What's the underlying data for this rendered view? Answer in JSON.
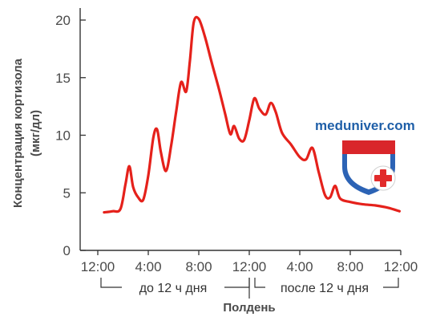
{
  "chart_data": {
    "type": "line",
    "ylabel_line1": "Концентрация кортизола",
    "ylabel_line2": "(мкг/дл)",
    "xlabel": "Полдень",
    "ylim": [
      0,
      21
    ],
    "yticks": [
      0,
      5,
      10,
      15,
      20
    ],
    "xticks": [
      "12:00",
      "4:00",
      "8:00",
      "12:00",
      "4:00",
      "8:00",
      "12:00"
    ],
    "xlim_hours": [
      0,
      24
    ],
    "bracket_left": "до 12 ч дня",
    "bracket_right": "после 12 ч дня",
    "series": [
      {
        "color": "#e5211b",
        "points": [
          [
            0.5,
            3.3
          ],
          [
            1.2,
            3.4
          ],
          [
            1.8,
            3.6
          ],
          [
            2.2,
            5.8
          ],
          [
            2.5,
            7.3
          ],
          [
            2.8,
            5.5
          ],
          [
            3.2,
            4.6
          ],
          [
            3.6,
            4.4
          ],
          [
            4.0,
            6.5
          ],
          [
            4.4,
            9.8
          ],
          [
            4.7,
            10.5
          ],
          [
            5.0,
            8.5
          ],
          [
            5.4,
            6.9
          ],
          [
            5.8,
            9.0
          ],
          [
            6.2,
            12.0
          ],
          [
            6.6,
            14.6
          ],
          [
            7.0,
            13.8
          ],
          [
            7.3,
            16.5
          ],
          [
            7.6,
            19.8
          ],
          [
            8.0,
            20.1
          ],
          [
            8.5,
            18.5
          ],
          [
            9.0,
            16.4
          ],
          [
            9.6,
            14.0
          ],
          [
            10.1,
            11.8
          ],
          [
            10.5,
            10.1
          ],
          [
            10.8,
            10.8
          ],
          [
            11.2,
            9.7
          ],
          [
            11.6,
            9.6
          ],
          [
            12.0,
            11.3
          ],
          [
            12.4,
            13.2
          ],
          [
            12.8,
            12.3
          ],
          [
            13.3,
            11.8
          ],
          [
            13.7,
            12.8
          ],
          [
            14.1,
            12.0
          ],
          [
            14.6,
            10.2
          ],
          [
            15.3,
            9.2
          ],
          [
            16.0,
            8.1
          ],
          [
            16.5,
            7.9
          ],
          [
            17.0,
            8.9
          ],
          [
            17.5,
            6.8
          ],
          [
            18.0,
            4.8
          ],
          [
            18.4,
            4.6
          ],
          [
            18.8,
            5.6
          ],
          [
            19.2,
            4.5
          ],
          [
            20.0,
            4.2
          ],
          [
            21.0,
            4.0
          ],
          [
            22.0,
            3.9
          ],
          [
            23.0,
            3.7
          ],
          [
            23.9,
            3.4
          ]
        ]
      }
    ]
  },
  "watermark": {
    "text": "meduniver.com",
    "text_color": "#1f5fa8",
    "shield_blue": "#2c63b5",
    "shield_red": "#d9262a",
    "cross_color": "#e12b2b",
    "icon": "shield-cross-icon"
  }
}
